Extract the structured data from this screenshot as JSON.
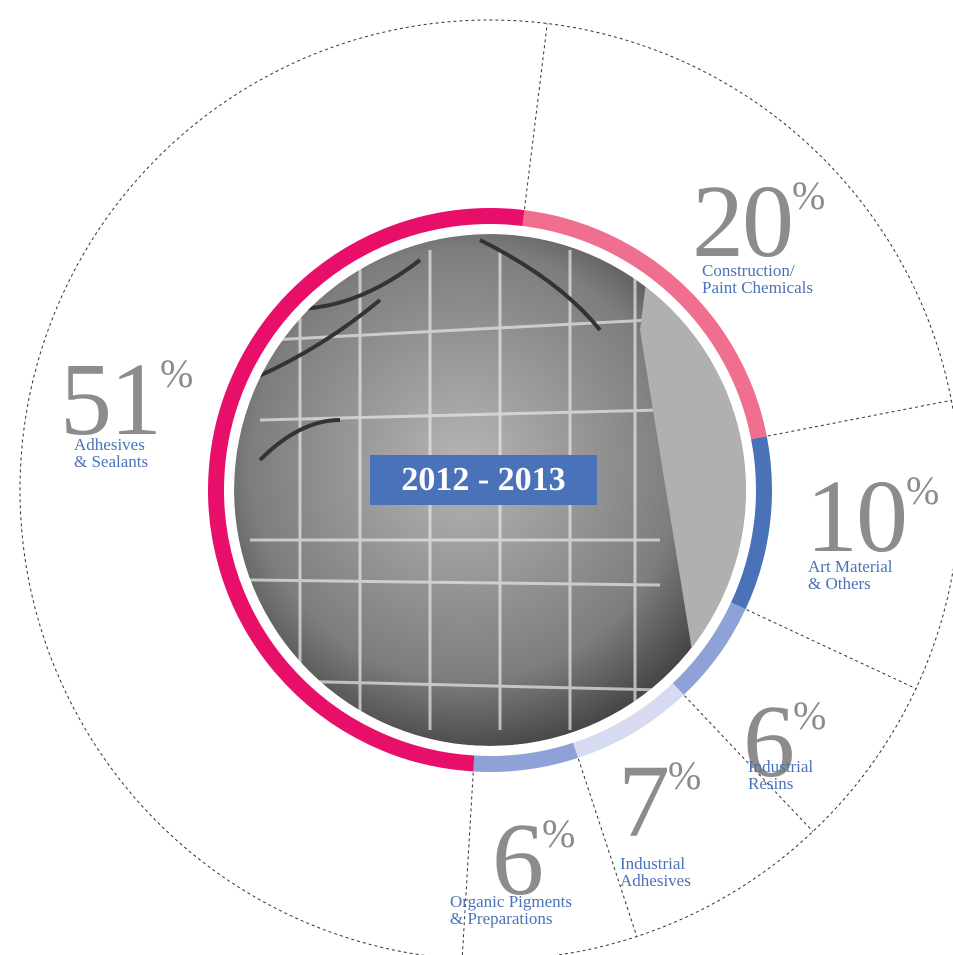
{
  "chart_data": {
    "type": "donut",
    "title": "2012 - 2013",
    "categories": [
      "Construction/\nPaint Chemicals",
      "Art Material\n& Others",
      "Industrial\nResins",
      "Industrial\nAdhesives",
      "Organic Pigments\n& Preparations",
      "Adhesives\n& Sealants"
    ],
    "values": [
      20,
      10,
      6,
      7,
      6,
      51
    ],
    "value_suffix": "%",
    "colors": [
      "#f06f8f",
      "#4a72b8",
      "#8ea2d8",
      "#d6dbf1",
      "#8ea2d8",
      "#e80f6b"
    ]
  }
}
